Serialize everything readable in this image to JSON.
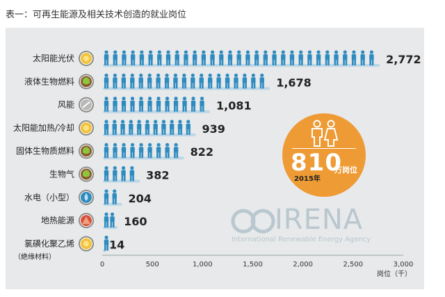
{
  "page_title": "表一：可再生能源及相关技术创造的就业岗位",
  "colors": {
    "figure": "#2e8bc0",
    "figure_shadow": "#bcd6e6",
    "panel_bg": "#e7e9ea",
    "badge": "#ee9a35",
    "value_text": "#222222",
    "watermark": "#b9c7cf"
  },
  "icons": [
    "sun-icon",
    "leaf-icon",
    "wind-icon",
    "sun-icon",
    "leaf-icon",
    "leaf-icon",
    "water-drop-icon",
    "triangle-icon",
    "sun-icon"
  ],
  "badge": {
    "value": "810",
    "unit": "万岗位",
    "year": "2015年",
    "icon": "people-icon"
  },
  "watermark": {
    "name": "IRENA",
    "subtitle": "International Renewable Energy Agency"
  },
  "chart_data": {
    "type": "bar",
    "orientation": "horizontal",
    "categories": [
      "太阳能光伏",
      "液体生物燃料",
      "风能",
      "太阳能加热/冷却",
      "固体生物质燃料",
      "生物气",
      "水电（小型）",
      "地热能源",
      "氯磺化聚乙烯"
    ],
    "category_notes": [
      "",
      "",
      "",
      "",
      "",
      "",
      "",
      "",
      "（绝缘材料）"
    ],
    "values": [
      2772,
      1678,
      1081,
      939,
      822,
      382,
      204,
      160,
      14
    ],
    "value_labels": [
      "2,772",
      "1,678",
      "1,081",
      "939",
      "822",
      "382",
      "204",
      "160",
      "14"
    ],
    "xlabel": "岗位（千）",
    "xlim": [
      0,
      3000
    ],
    "xticks": [
      0,
      500,
      1000,
      1500,
      2000,
      2500,
      3000
    ],
    "xtick_labels": [
      "0",
      "500",
      "1,000",
      "1,500",
      "2,000",
      "2,500",
      "3,000"
    ],
    "grid": false
  }
}
